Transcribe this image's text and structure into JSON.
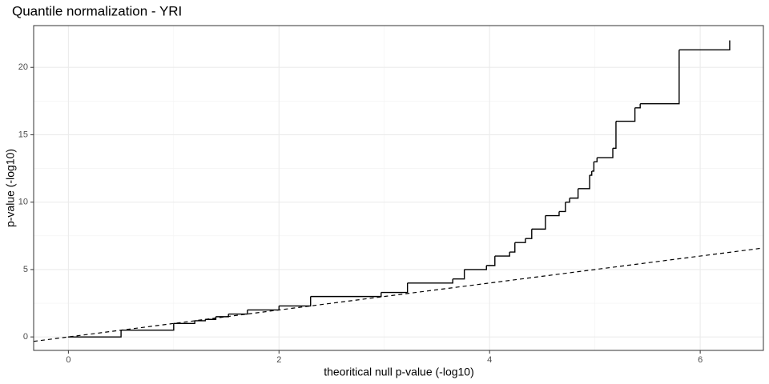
{
  "chart_data": {
    "type": "step",
    "title": "Quantile normalization - YRI",
    "x_label": "theoritical null p-value (-log10)",
    "y_label": "p-value (-log10)",
    "x": [
      0,
      0.5,
      1,
      1.2,
      1.3,
      1.4,
      1.52,
      1.7,
      2.0,
      2.3,
      2.97,
      3.22,
      3.65,
      3.76,
      3.97,
      4.05,
      4.19,
      4.24,
      4.34,
      4.4,
      4.53,
      4.66,
      4.72,
      4.76,
      4.84,
      4.95,
      4.97,
      4.99,
      5.02,
      5.17,
      5.2,
      5.38,
      5.43,
      5.8,
      6.28
    ],
    "values": [
      0,
      0.5,
      1,
      1.2,
      1.3,
      1.5,
      1.7,
      2.0,
      2.3,
      3.0,
      3.3,
      4.0,
      4.3,
      5.0,
      5.3,
      6.0,
      6.3,
      7.0,
      7.3,
      8.0,
      9.0,
      9.3,
      10.0,
      10.3,
      11.0,
      12.0,
      12.3,
      13.0,
      13.3,
      14.0,
      16.0,
      17.0,
      17.3,
      21.3,
      22.0
    ],
    "color": "#000000",
    "reference_line": {
      "slope": 1,
      "intercept": 0,
      "color": "#000000"
    },
    "xlim": [
      -0.33,
      6.6
    ],
    "xticks": [
      0,
      2,
      4,
      6
    ],
    "ylim": [
      -1.0,
      23.1
    ],
    "yticks": [
      0,
      5,
      10,
      15,
      20
    ],
    "grid": true
  }
}
